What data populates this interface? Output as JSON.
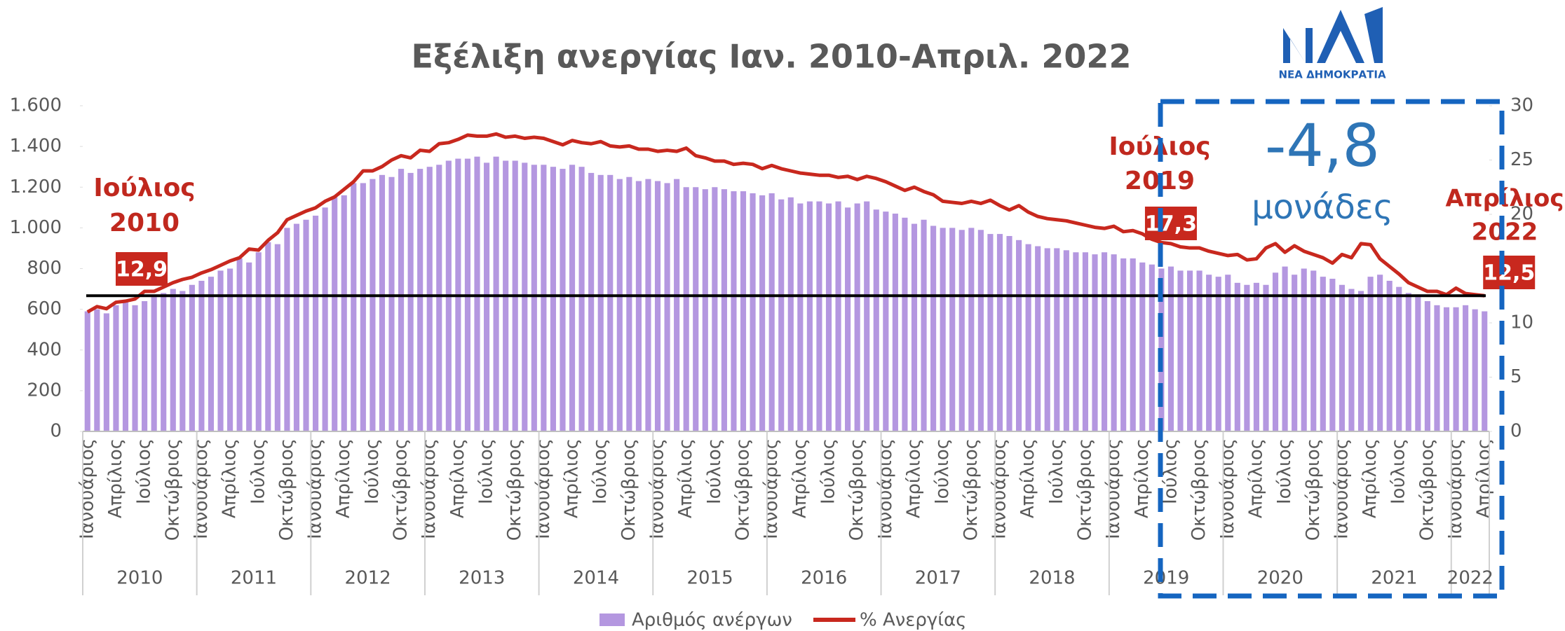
{
  "chart_data": {
    "type": "bar_line",
    "title": "Εξέλιξη ανεργίας Ιαν. 2010-Απριλ. 2022",
    "logo_text": "ΝΕΑ ΔΗΜΟΚΡΑΤΙΑ",
    "categories": [
      "Ιανουάριος",
      null,
      null,
      "Απρίλιος",
      null,
      null,
      "Ιούλιος",
      null,
      null,
      "Οκτώβριος",
      null,
      null,
      "Ιανουάριος",
      null,
      null,
      "Απρίλιος",
      null,
      null,
      "Ιούλιος",
      null,
      null,
      "Οκτώβριος",
      null,
      null,
      "Ιανουάριος",
      null,
      null,
      "Απρίλιος",
      null,
      null,
      "Ιούλιος",
      null,
      null,
      "Οκτώβριος",
      null,
      null,
      "Ιανουάριος",
      null,
      null,
      "Απρίλιος",
      null,
      null,
      "Ιούλιος",
      null,
      null,
      "Οκτώβριος",
      null,
      null,
      "Ιανουάριος",
      null,
      null,
      "Απρίλιος",
      null,
      null,
      "Ιούλιος",
      null,
      null,
      "Οκτώβριος",
      null,
      null,
      "Ιανουάριος",
      null,
      null,
      "Απρίλιος",
      null,
      null,
      "Ιούλιος",
      null,
      null,
      "Οκτώβριος",
      null,
      null,
      "Ιανουάριος",
      null,
      null,
      "Απρίλιος",
      null,
      null,
      "Ιούλιος",
      null,
      null,
      "Οκτώβριος",
      null,
      null,
      "Ιανουάριος",
      null,
      null,
      "Απρίλιος",
      null,
      null,
      "Ιούλιος",
      null,
      null,
      "Οκτώβριος",
      null,
      null,
      "Ιανουάριος",
      null,
      null,
      "Απρίλιος",
      null,
      null,
      "Ιούλιος",
      null,
      null,
      "Οκτώβριος",
      null,
      null,
      "Ιανουάριος",
      null,
      null,
      "Απρίλιος",
      null,
      null,
      "Ιούλιος",
      null,
      null,
      "Οκτώβριος",
      null,
      null,
      "Ιανουάριος",
      null,
      null,
      "Απρίλιος",
      null,
      null,
      "Ιούλιος",
      null,
      null,
      "Οκτώβριος",
      null,
      null,
      "Ιανουάριος",
      null,
      null,
      "Απρίλιος",
      null,
      null,
      "Ιούλιος",
      null,
      null,
      "Οκτώβριος",
      null,
      null,
      "Ιανουάριος",
      null,
      null,
      "Απρίλιος"
    ],
    "years": [
      "2010",
      "2011",
      "2012",
      "2013",
      "2014",
      "2015",
      "2016",
      "2017",
      "2018",
      "2019",
      "2020",
      "2021",
      "2022"
    ],
    "series": [
      {
        "name": "Αριθμός ανέργων",
        "color": "#b497e0",
        "values": [
          590,
          600,
          580,
          620,
          640,
          620,
          640,
          660,
          680,
          700,
          690,
          720,
          740,
          760,
          790,
          800,
          850,
          830,
          880,
          930,
          920,
          1000,
          1020,
          1040,
          1060,
          1100,
          1150,
          1160,
          1220,
          1220,
          1240,
          1260,
          1250,
          1290,
          1270,
          1290,
          1300,
          1310,
          1330,
          1340,
          1340,
          1350,
          1320,
          1350,
          1330,
          1330,
          1320,
          1310,
          1310,
          1300,
          1290,
          1310,
          1300,
          1270,
          1260,
          1260,
          1240,
          1250,
          1230,
          1240,
          1230,
          1220,
          1240,
          1200,
          1200,
          1190,
          1200,
          1190,
          1180,
          1180,
          1170,
          1160,
          1170,
          1140,
          1150,
          1120,
          1130,
          1130,
          1120,
          1130,
          1100,
          1120,
          1130,
          1090,
          1080,
          1070,
          1050,
          1020,
          1040,
          1010,
          1000,
          1000,
          990,
          1000,
          990,
          970,
          970,
          960,
          940,
          920,
          910,
          900,
          900,
          890,
          880,
          880,
          870,
          880,
          870,
          850,
          850,
          830,
          820,
          800,
          810,
          790,
          790,
          790,
          770,
          760,
          770,
          730,
          720,
          730,
          720,
          780,
          810,
          770,
          800,
          790,
          760,
          750,
          720,
          700,
          690,
          760,
          770,
          740,
          710,
          680,
          660,
          640,
          620,
          610,
          610,
          620,
          600,
          590
        ]
      },
      {
        "name": "% Ανεργίας",
        "color": "#c8281e",
        "axis": "y2",
        "values": [
          11.0,
          11.5,
          11.3,
          11.9,
          12.0,
          12.2,
          12.9,
          12.9,
          13.3,
          13.7,
          14.0,
          14.2,
          14.6,
          14.9,
          15.3,
          15.7,
          16.0,
          16.8,
          16.7,
          17.6,
          18.3,
          19.5,
          19.9,
          20.3,
          20.6,
          21.2,
          21.6,
          22.3,
          23.0,
          24.0,
          24.0,
          24.4,
          25.0,
          25.4,
          25.2,
          25.9,
          25.8,
          26.5,
          26.6,
          26.9,
          27.3,
          27.2,
          27.2,
          27.4,
          27.1,
          27.2,
          27.0,
          27.1,
          27.0,
          26.7,
          26.4,
          26.8,
          26.6,
          26.5,
          26.7,
          26.3,
          26.2,
          26.3,
          26.0,
          26.0,
          25.8,
          25.9,
          25.8,
          26.1,
          25.4,
          25.2,
          24.9,
          24.9,
          24.6,
          24.7,
          24.6,
          24.2,
          24.5,
          24.2,
          24.0,
          23.8,
          23.7,
          23.6,
          23.6,
          23.4,
          23.5,
          23.2,
          23.5,
          23.3,
          23.0,
          22.6,
          22.2,
          22.5,
          22.1,
          21.8,
          21.2,
          21.1,
          21.0,
          21.2,
          21.0,
          21.3,
          20.8,
          20.4,
          20.8,
          20.2,
          19.8,
          19.6,
          19.5,
          19.4,
          19.2,
          19.0,
          18.8,
          18.7,
          18.9,
          18.4,
          18.5,
          18.2,
          17.7,
          17.4,
          17.3,
          17.0,
          16.9,
          16.9,
          16.6,
          16.4,
          16.2,
          16.3,
          15.8,
          15.9,
          16.9,
          17.3,
          16.5,
          17.1,
          16.6,
          16.3,
          16.0,
          15.5,
          16.3,
          16.0,
          17.3,
          17.2,
          15.9,
          15.2,
          14.5,
          13.7,
          13.3,
          12.9,
          12.9,
          12.6,
          13.2,
          12.7,
          12.6,
          12.5
        ],
        "value_labels": [
          null,
          null,
          null,
          null,
          null,
          null,
          "12,9",
          null,
          null,
          null,
          null,
          null,
          null,
          null,
          null,
          null,
          null,
          null,
          null,
          null,
          null,
          null,
          null,
          null,
          null,
          null,
          null,
          null,
          null,
          null,
          null,
          null,
          null,
          null,
          null,
          null,
          null,
          null,
          null,
          null,
          null,
          null,
          null,
          null,
          null,
          null,
          null,
          null,
          null,
          null,
          null,
          null,
          null,
          null,
          null,
          null,
          null,
          null,
          null,
          null,
          null,
          null,
          null,
          null,
          null,
          null,
          null,
          null,
          null,
          null,
          null,
          null,
          null,
          null,
          null,
          null,
          null,
          null,
          null,
          null,
          null,
          null,
          null,
          null,
          null,
          null,
          null,
          null,
          null,
          null,
          null,
          null,
          null,
          null,
          null,
          null,
          null,
          null,
          null,
          null,
          null,
          null,
          null,
          null,
          null,
          null,
          null,
          null,
          null,
          null,
          null,
          null,
          null,
          null,
          "17,3",
          null,
          null,
          null,
          null,
          null,
          null,
          null,
          null,
          null,
          null,
          null,
          null,
          null,
          null,
          null,
          null,
          null,
          null,
          null,
          null,
          null,
          null,
          null,
          null,
          null,
          null,
          null,
          null,
          null,
          null,
          null,
          null,
          "12,5"
        ]
      }
    ],
    "reference_line": {
      "value": 12.5,
      "axis": "y2"
    },
    "annotations": [
      [
        "Ιούλιος",
        "2010"
      ],
      [
        "Ιούλιος",
        "2019"
      ],
      [
        "Απρίλιος",
        "2022"
      ],
      [
        "-4,8",
        "μονάδες"
      ]
    ],
    "ylim": [
      0,
      1600
    ],
    "yticks": [
      0,
      200,
      400,
      600,
      800,
      {
        "value": 1000,
        "label": "1.000"
      },
      {
        "value": 1200,
        "label": "1.200"
      },
      {
        "value": 1400,
        "label": "1.400"
      },
      {
        "value": 1600,
        "label": "1.600"
      }
    ],
    "y2lim": [
      0,
      30
    ],
    "y2ticks": [
      0,
      5,
      10,
      15,
      20,
      25,
      30
    ],
    "grid": false,
    "legend": "bottom"
  }
}
